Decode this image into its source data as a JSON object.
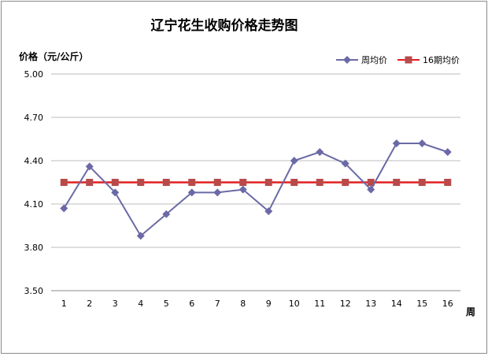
{
  "chart_data": {
    "type": "line",
    "title": "辽宁花生收购价格走势图",
    "ylabel": "价格（元/公斤）",
    "xlabel": "周",
    "categories": [
      "1",
      "2",
      "3",
      "4",
      "5",
      "6",
      "7",
      "8",
      "9",
      "10",
      "11",
      "12",
      "13",
      "14",
      "15",
      "16"
    ],
    "y_ticks": [
      "5.00",
      "4.70",
      "4.40",
      "4.10",
      "3.80",
      "3.50"
    ],
    "ylim": [
      3.5,
      5.0
    ],
    "grid": "horizontal",
    "legend_position": "top-right",
    "series": [
      {
        "name": "周均价",
        "color": "#6b6aa6",
        "marker": "diamond",
        "values": [
          4.07,
          4.36,
          4.18,
          3.88,
          4.03,
          4.18,
          4.18,
          4.2,
          4.05,
          4.4,
          4.46,
          4.38,
          4.2,
          4.52,
          4.52,
          4.46
        ]
      },
      {
        "name": "16期均价",
        "color": "#b94a4a",
        "line_color": "#e02020",
        "marker": "square",
        "values": [
          4.25,
          4.25,
          4.25,
          4.25,
          4.25,
          4.25,
          4.25,
          4.25,
          4.25,
          4.25,
          4.25,
          4.25,
          4.25,
          4.25,
          4.25,
          4.25
        ]
      }
    ]
  }
}
